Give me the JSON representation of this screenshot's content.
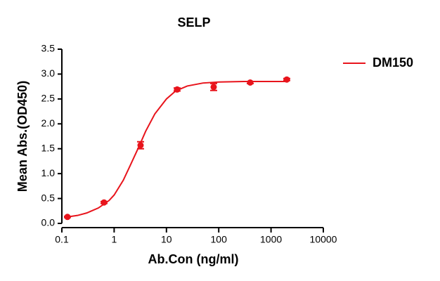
{
  "chart_data": {
    "type": "scatter",
    "title": "SELP",
    "x_label": "Ab.Con (ng/ml)",
    "y_label": "Mean Abs.(OD450)",
    "x_scale": "log",
    "xlim": [
      0.1,
      10000
    ],
    "xticks": [
      0.1,
      1,
      10,
      100,
      1000,
      10000
    ],
    "ylim": [
      0,
      3.5
    ],
    "yticks": [
      {
        "value": 0,
        "label": "0.0"
      },
      0.5,
      {
        "value": 1,
        "label": "1.0"
      },
      1.5,
      {
        "value": 2,
        "label": "2.0"
      },
      2.5,
      {
        "value": 3,
        "label": "3.0"
      },
      3.5
    ],
    "legend": "top-right",
    "series": [
      {
        "name": "DM150",
        "color": "#e8141c",
        "x": [
          0.128,
          0.64,
          3.2,
          16,
          80,
          400,
          2000
        ],
        "values": [
          0.13,
          0.42,
          1.57,
          2.69,
          2.74,
          2.83,
          2.89
        ],
        "errors": [
          0.01,
          0.02,
          0.07,
          0.03,
          0.07,
          0.02,
          0.02
        ],
        "fit": {
          "x": [
            0.128,
            0.2,
            0.3,
            0.5,
            0.8,
            1,
            1.5,
            2,
            3,
            4,
            6,
            10,
            15,
            25,
            50,
            100,
            300,
            2000
          ],
          "values": [
            0.13,
            0.16,
            0.21,
            0.31,
            0.46,
            0.57,
            0.87,
            1.15,
            1.55,
            1.85,
            2.2,
            2.5,
            2.66,
            2.76,
            2.82,
            2.84,
            2.85,
            2.85
          ]
        }
      }
    ]
  }
}
